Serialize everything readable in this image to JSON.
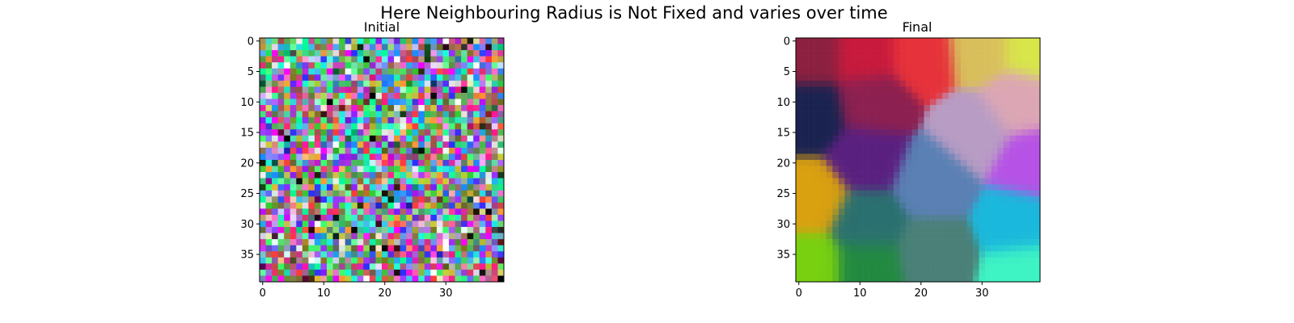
{
  "suptitle": "Here Neighbouring Radius is Not Fixed and varies over time",
  "chart_data": [
    {
      "type": "heatmap",
      "title": "Initial",
      "grid_size": [
        40,
        40
      ],
      "xlim": [
        0,
        39
      ],
      "ylim": [
        39,
        0
      ],
      "x_ticks": [
        0,
        10,
        20,
        30
      ],
      "y_ticks": [
        0,
        5,
        10,
        15,
        20,
        25,
        30,
        35
      ],
      "pattern": "random",
      "palette": [
        "#ff3b3b",
        "#3bff6e",
        "#2e2eff",
        "#ff6ec7",
        "#1ee6e6",
        "#7a7a1e",
        "#000000",
        "#ffffff",
        "#33cc33",
        "#9933ff",
        "#ff9933",
        "#66ff99",
        "#ff1a8c",
        "#1a8cff",
        "#cccc33",
        "#8c1aff",
        "#1affd9",
        "#b34d4d",
        "#4db34d",
        "#e6e6e6",
        "#ff00ff",
        "#00ff99",
        "#8080ff",
        "#666633"
      ],
      "seed": 7
    },
    {
      "type": "heatmap",
      "title": "Final",
      "grid_size": [
        40,
        40
      ],
      "xlim": [
        0,
        39
      ],
      "ylim": [
        39,
        0
      ],
      "x_ticks": [
        0,
        10,
        20,
        30
      ],
      "y_ticks": [
        0,
        5,
        10,
        15,
        20,
        25,
        30,
        35
      ],
      "pattern": "clusters",
      "clusters": [
        {
          "x": 2,
          "y": 2,
          "color": "#8c2040"
        },
        {
          "x": 11,
          "y": 2,
          "color": "#c81a3c"
        },
        {
          "x": 20,
          "y": 2,
          "color": "#e6323a"
        },
        {
          "x": 30,
          "y": 1,
          "color": "#d9bf5c"
        },
        {
          "x": 38,
          "y": 1,
          "color": "#d8e64a"
        },
        {
          "x": 2,
          "y": 12,
          "color": "#1a2350"
        },
        {
          "x": 12,
          "y": 10,
          "color": "#8c2050"
        },
        {
          "x": 36,
          "y": 10,
          "color": "#dca6b4"
        },
        {
          "x": 29,
          "y": 15,
          "color": "#b89cc4"
        },
        {
          "x": 11,
          "y": 19,
          "color": "#5a2080"
        },
        {
          "x": 38,
          "y": 20,
          "color": "#b652e6"
        },
        {
          "x": 22,
          "y": 23,
          "color": "#5a80b4"
        },
        {
          "x": 2,
          "y": 26,
          "color": "#d9a010"
        },
        {
          "x": 11,
          "y": 30,
          "color": "#2a7070"
        },
        {
          "x": 36,
          "y": 30,
          "color": "#1ab8dc"
        },
        {
          "x": 22,
          "y": 35,
          "color": "#4a8078"
        },
        {
          "x": 2,
          "y": 37,
          "color": "#78d010"
        },
        {
          "x": 11,
          "y": 37,
          "color": "#228a40"
        },
        {
          "x": 37,
          "y": 38,
          "color": "#3ff4c4"
        }
      ]
    }
  ]
}
